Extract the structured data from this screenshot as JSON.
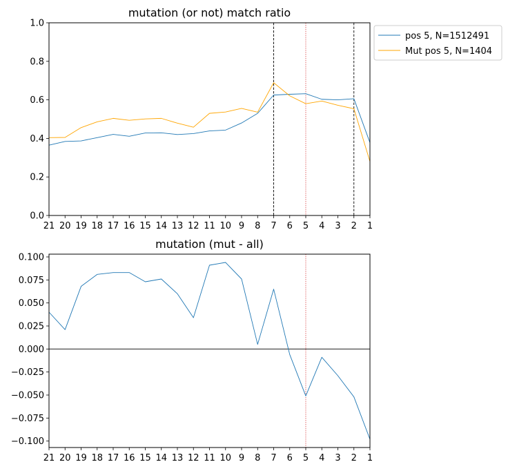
{
  "chart_data": [
    {
      "type": "line",
      "title": "mutation (or not) match ratio",
      "xlabel": "",
      "ylabel": "",
      "categories": [
        "21",
        "20",
        "19",
        "18",
        "17",
        "16",
        "15",
        "14",
        "13",
        "12",
        "11",
        "10",
        "9",
        "8",
        "7",
        "6",
        "5",
        "4",
        "3",
        "2",
        "1"
      ],
      "ylim": [
        0.0,
        1.0
      ],
      "yticks": [
        "0.0",
        "0.2",
        "0.4",
        "0.6",
        "0.8",
        "1.0"
      ],
      "series": [
        {
          "name": "pos 5, N=1512491",
          "color": "#1f77b4",
          "values": [
            0.365,
            0.384,
            0.387,
            0.404,
            0.421,
            0.411,
            0.428,
            0.429,
            0.42,
            0.425,
            0.439,
            0.443,
            0.48,
            0.53,
            0.625,
            0.629,
            0.632,
            0.603,
            0.6,
            0.606,
            0.378
          ]
        },
        {
          "name": "Mut pos 5, N=1404",
          "color": "#ffa500",
          "values": [
            0.404,
            0.405,
            0.456,
            0.486,
            0.504,
            0.494,
            0.501,
            0.504,
            0.479,
            0.458,
            0.53,
            0.537,
            0.556,
            0.536,
            0.689,
            0.621,
            0.58,
            0.594,
            0.572,
            0.554,
            0.28
          ]
        }
      ],
      "vlines": [
        {
          "x": "7",
          "color": "#000000",
          "style": "dashed"
        },
        {
          "x": "5",
          "color": "#d62728",
          "style": "dotted"
        },
        {
          "x": "2",
          "color": "#000000",
          "style": "dashed"
        }
      ],
      "legend": "outside-right-top"
    },
    {
      "type": "line",
      "title": "mutation (mut - all)",
      "xlabel": "",
      "ylabel": "",
      "categories": [
        "21",
        "20",
        "19",
        "18",
        "17",
        "16",
        "15",
        "14",
        "13",
        "12",
        "11",
        "10",
        "9",
        "8",
        "7",
        "6",
        "5",
        "4",
        "3",
        "2",
        "1"
      ],
      "ylim": [
        -0.107,
        0.103
      ],
      "yticks": [
        "0.100",
        "0.075",
        "0.050",
        "0.025",
        "0.000",
        "−0.025",
        "−0.050",
        "−0.075",
        "−0.100"
      ],
      "ytick_values": [
        0.1,
        0.075,
        0.05,
        0.025,
        0.0,
        -0.025,
        -0.05,
        -0.075,
        -0.1
      ],
      "series": [
        {
          "color": "#1f77b4",
          "values": [
            0.04,
            0.021,
            0.068,
            0.081,
            0.083,
            0.083,
            0.073,
            0.076,
            0.06,
            0.034,
            0.091,
            0.094,
            0.076,
            0.005,
            0.065,
            -0.006,
            -0.051,
            -0.009,
            -0.029,
            -0.052,
            -0.098
          ]
        }
      ],
      "hlines": [
        {
          "y": 0.0,
          "color": "#000000"
        }
      ],
      "vlines": [
        {
          "x": "5",
          "color": "#d62728",
          "style": "dotted"
        }
      ]
    }
  ]
}
